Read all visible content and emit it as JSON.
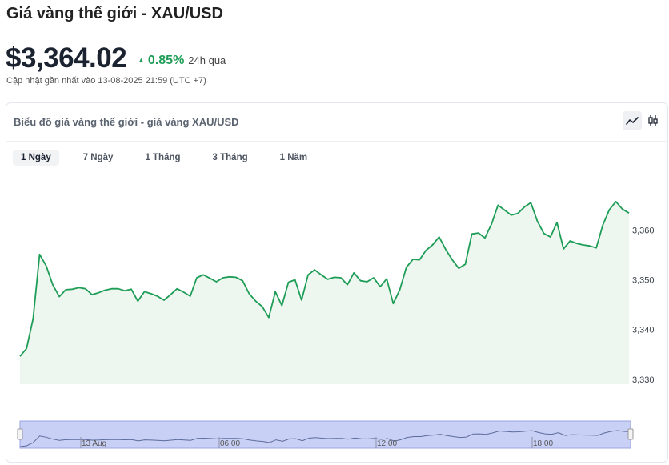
{
  "header": {
    "title": "Giá vàng thế giới - XAU/USD",
    "price": "$3,364.02",
    "change_percent": "0.85%",
    "change_period": "24h qua",
    "updated": "Cập nhật gần nhất vào 13-08-2025 21:59 (UTC +7)"
  },
  "chart_card": {
    "title": "Biểu đồ giá vàng thế giới - giá vàng XAU/USD",
    "chart_type_buttons": [
      {
        "name": "line-chart-icon",
        "active": true
      },
      {
        "name": "candlestick-icon",
        "active": false
      }
    ],
    "tabs": [
      {
        "label": "1 Ngày",
        "active": true
      },
      {
        "label": "7 Ngày",
        "active": false
      },
      {
        "label": "1 Tháng",
        "active": false
      },
      {
        "label": "3 Tháng",
        "active": false
      },
      {
        "label": "1 Năm",
        "active": false
      }
    ]
  },
  "colors": {
    "line": "#1e9d57",
    "area": "#eef6f0",
    "up": "#1e9d57",
    "navigator_fill": "#c9d0f5",
    "navigator_border": "#9aa5e0"
  },
  "chart_data": {
    "type": "area",
    "title": "",
    "xlabel": "",
    "ylabel": "",
    "ylim": [
      3329,
      3371
    ],
    "yticks": [
      3330,
      3340,
      3350,
      3360
    ],
    "ytick_labels": [
      "3,330",
      "3,340",
      "3,350",
      "3,360"
    ],
    "navigator_ticks": [
      "13 Aug",
      "06:00",
      "12:00",
      "18:00"
    ],
    "series": [
      {
        "values": [
          3334.6,
          3336.2,
          3342.2,
          3355.1,
          3352.8,
          3349.0,
          3346.6,
          3348.0,
          3348.1,
          3348.4,
          3348.2,
          3347.0,
          3347.4,
          3347.9,
          3348.2,
          3348.2,
          3347.8,
          3348.1,
          3345.7,
          3347.6,
          3347.2,
          3346.7,
          3345.9,
          3347.0,
          3348.2,
          3347.5,
          3346.7,
          3350.4,
          3351.0,
          3350.3,
          3349.6,
          3350.4,
          3350.6,
          3350.5,
          3349.8,
          3347.2,
          3345.7,
          3344.6,
          3342.4,
          3347.6,
          3344.8,
          3349.5,
          3350.0,
          3345.9,
          3351.0,
          3352.0,
          3351.0,
          3350.1,
          3350.5,
          3350.4,
          3349.0,
          3351.4,
          3349.8,
          3349.6,
          3350.4,
          3348.6,
          3350.2,
          3345.2,
          3348.0,
          3352.5,
          3354.1,
          3354.0,
          3355.9,
          3357.0,
          3358.6,
          3356.1,
          3354.0,
          3352.3,
          3353.1,
          3359.2,
          3359.4,
          3358.4,
          3361.2,
          3365.0,
          3364.0,
          3363.0,
          3363.3,
          3364.6,
          3365.5,
          3361.8,
          3359.3,
          3358.6,
          3361.5,
          3356.2,
          3357.8,
          3357.3,
          3357.0,
          3356.8,
          3356.4,
          3361.0,
          3364.1,
          3365.7,
          3364.2,
          3363.4
        ]
      }
    ]
  }
}
